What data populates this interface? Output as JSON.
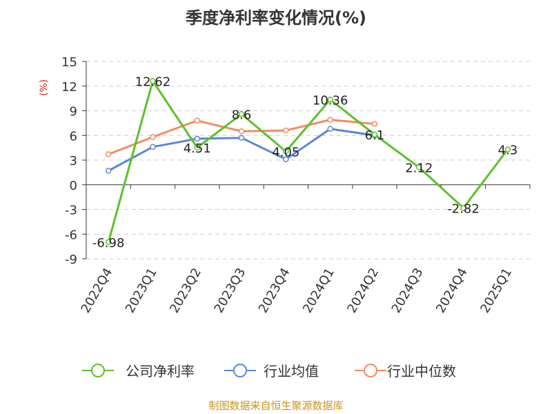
{
  "chart_data": {
    "type": "line",
    "title": "季度净利率变化情况(%)",
    "ylabel": "(%)",
    "ylim": [
      -9,
      15
    ],
    "yticks": [
      -9,
      -6,
      -3,
      0,
      3,
      6,
      9,
      12,
      15
    ],
    "grid": true,
    "legend_position": "bottom",
    "categories": [
      "2022Q4",
      "2023Q1",
      "2023Q2",
      "2023Q3",
      "2023Q4",
      "2024Q1",
      "2024Q2",
      "2024Q3",
      "2024Q4",
      "2025Q1"
    ],
    "series": [
      {
        "name": "公司净利率",
        "color": "#5cc02c",
        "values": [
          -6.98,
          12.62,
          4.51,
          8.6,
          4.05,
          10.36,
          6.1,
          2.12,
          -2.82,
          4.3
        ],
        "labels": [
          "-6.98",
          "12.62",
          "4.51",
          "8.6",
          "4.05",
          "10.36",
          "6.1",
          "2.12",
          "-2.82",
          "4.3"
        ]
      },
      {
        "name": "行业均值",
        "color": "#5b86d8",
        "values": [
          1.7,
          4.6,
          5.6,
          5.7,
          3.1,
          6.8,
          6.0,
          null,
          null,
          null
        ]
      },
      {
        "name": "行业中位数",
        "color": "#f28b5c",
        "values": [
          3.7,
          5.8,
          7.8,
          6.5,
          6.6,
          7.9,
          7.4,
          null,
          null,
          null
        ]
      }
    ]
  },
  "footer": {
    "source": "制图数据来自恒生聚源数据库"
  },
  "colors": {
    "source_text": "#c8961e",
    "unit_text": "#e02020",
    "grid": "#cccccc",
    "axis": "#333333"
  }
}
